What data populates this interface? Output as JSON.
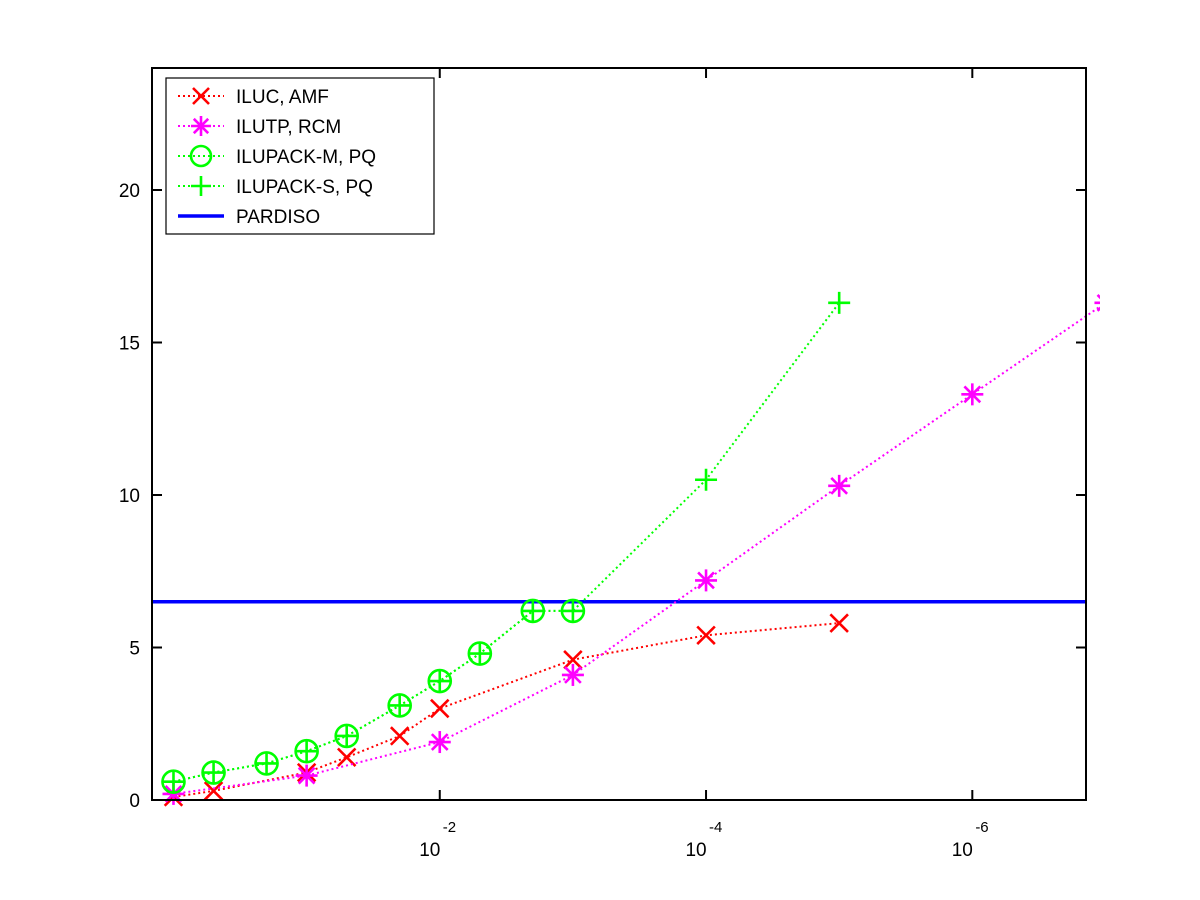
{
  "chart_data": {
    "type": "line",
    "title": "",
    "xlabel": "",
    "ylabel": "",
    "x_scale": "log-reversed",
    "xlim": [
      1.45,
      1.4e-07
    ],
    "ylim": [
      0,
      24
    ],
    "x_ticks": [
      {
        "base": "10",
        "exp": "-2",
        "value": 0.01
      },
      {
        "base": "10",
        "exp": "-4",
        "value": 0.0001
      },
      {
        "base": "10",
        "exp": "-6",
        "value": 1e-06
      }
    ],
    "y_ticks": [
      0,
      5,
      10,
      15,
      20
    ],
    "grid": false,
    "legend_position": "top-left",
    "reference_line": {
      "name": "PARDISO",
      "value": 6.5,
      "color": "#0000ff"
    },
    "series": [
      {
        "name": "ILUC, AMF",
        "marker": "x",
        "color": "#ff0000",
        "x": [
          1,
          0.5,
          0.1,
          0.05,
          0.02,
          0.01,
          0.001,
          0.0001,
          1e-05
        ],
        "y": [
          0.1,
          0.3,
          0.9,
          1.4,
          2.1,
          3.0,
          4.6,
          5.4,
          5.8
        ]
      },
      {
        "name": "ILUTP, RCM",
        "marker": "asterisk",
        "color": "#ff00ff",
        "x": [
          1,
          0.1,
          0.01,
          0.001,
          0.0001,
          1e-05,
          1e-06,
          1e-07
        ],
        "y": [
          0.2,
          0.8,
          1.9,
          4.1,
          7.2,
          10.3,
          13.3,
          16.3
        ]
      },
      {
        "name": "ILUPACK-M, PQ",
        "marker": "circle",
        "color": "#00ff00",
        "x": [
          1,
          0.5,
          0.2,
          0.1,
          0.05,
          0.02,
          0.01,
          0.005,
          0.002,
          0.001
        ],
        "y": [
          0.6,
          0.9,
          1.2,
          1.6,
          2.1,
          3.1,
          3.9,
          4.8,
          6.2,
          6.2
        ]
      },
      {
        "name": "ILUPACK-S, PQ",
        "marker": "plus",
        "color": "#00ff00",
        "x": [
          1,
          0.5,
          0.2,
          0.1,
          0.05,
          0.02,
          0.01,
          0.005,
          0.002,
          0.001,
          0.0001,
          1e-05
        ],
        "y": [
          0.6,
          0.9,
          1.2,
          1.6,
          2.1,
          3.1,
          3.9,
          4.8,
          6.2,
          6.2,
          10.5,
          16.3
        ]
      }
    ]
  }
}
